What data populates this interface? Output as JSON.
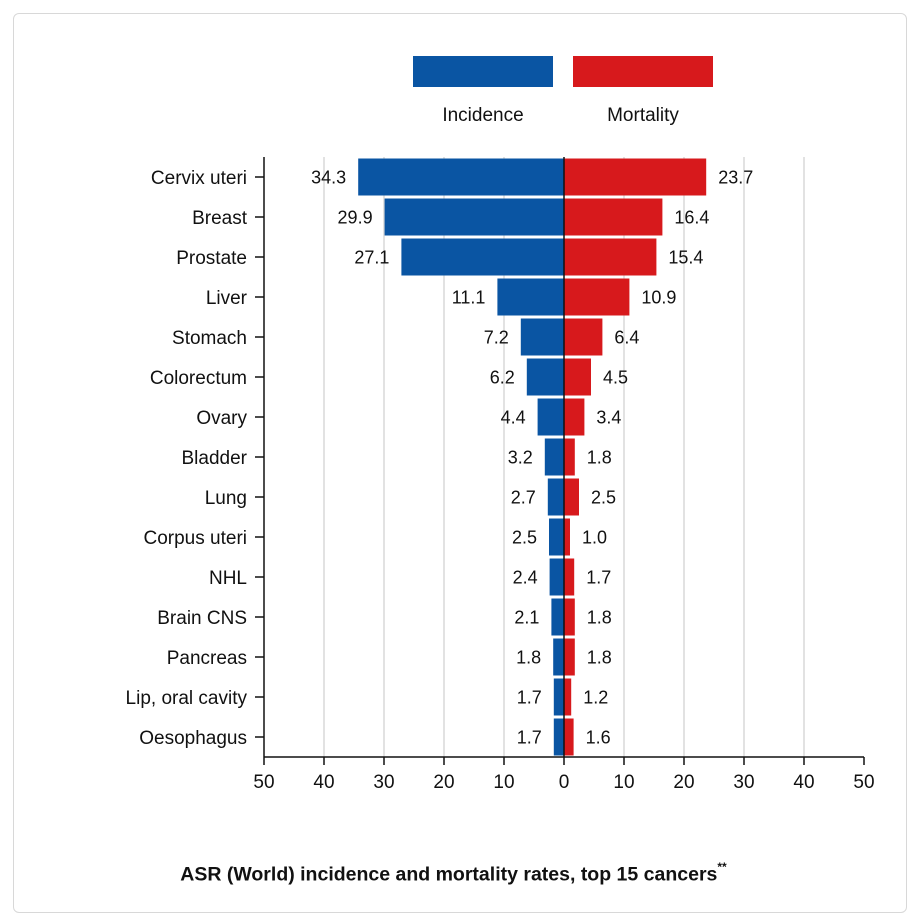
{
  "chart_data": {
    "type": "bar",
    "orientation": "horizontal-butterfly",
    "title": "ASR (World) incidence and mortality rates, top 15 cancers",
    "title_superscript": "**",
    "categories": [
      "Cervix uteri",
      "Breast",
      "Prostate",
      "Liver",
      "Stomach",
      "Colorectum",
      "Ovary",
      "Bladder",
      "Lung",
      "Corpus uteri",
      "NHL",
      "Brain CNS",
      "Pancreas",
      "Lip, oral cavity",
      "Oesophagus"
    ],
    "series": [
      {
        "name": "Incidence",
        "color": "#0a55a3",
        "direction": "left",
        "values": [
          34.3,
          29.9,
          27.1,
          11.1,
          7.2,
          6.2,
          4.4,
          3.2,
          2.7,
          2.5,
          2.4,
          2.1,
          1.8,
          1.7,
          1.7
        ],
        "labels": [
          "34.3",
          "29.9",
          "27.1",
          "11.1",
          "7.2",
          "6.2",
          "4.4",
          "3.2",
          "2.7",
          "2.5",
          "2.4",
          "2.1",
          "1.8",
          "1.7",
          "1.7"
        ]
      },
      {
        "name": "Mortality",
        "color": "#d7191c",
        "direction": "right",
        "values": [
          23.7,
          16.4,
          15.4,
          10.9,
          6.4,
          4.5,
          3.4,
          1.8,
          2.5,
          1.0,
          1.7,
          1.8,
          1.8,
          1.2,
          1.6
        ],
        "labels": [
          "23.7",
          "16.4",
          "15.4",
          "10.9",
          "6.4",
          "4.5",
          "3.4",
          "1.8",
          "2.5",
          "1.0",
          "1.7",
          "1.8",
          "1.8",
          "1.2",
          "1.6"
        ]
      }
    ],
    "xlim": [
      -50,
      50
    ],
    "x_ticks": [
      -50,
      -40,
      -30,
      -20,
      -10,
      0,
      10,
      20,
      30,
      40,
      50
    ],
    "x_tick_labels": [
      "50",
      "40",
      "30",
      "20",
      "10",
      "0",
      "10",
      "20",
      "30",
      "40",
      "50"
    ],
    "grid": "vertical",
    "legend": "top-center"
  }
}
